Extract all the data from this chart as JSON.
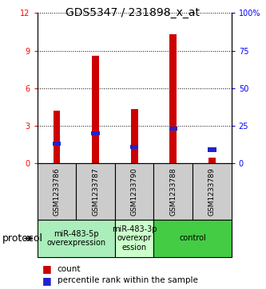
{
  "title": "GDS5347 / 231898_x_at",
  "samples": [
    "GSM1233786",
    "GSM1233787",
    "GSM1233790",
    "GSM1233788",
    "GSM1233789"
  ],
  "counts": [
    4.2,
    8.6,
    4.35,
    10.3,
    0.45
  ],
  "percentiles": [
    13,
    20,
    11,
    23,
    9
  ],
  "left_ylim": [
    0,
    12
  ],
  "right_ylim": [
    0,
    100
  ],
  "left_yticks": [
    0,
    3,
    6,
    9,
    12
  ],
  "right_yticks": [
    0,
    25,
    50,
    75,
    100
  ],
  "right_yticklabels": [
    "0",
    "25",
    "50",
    "75",
    "100%"
  ],
  "bar_color": "#cc0000",
  "pct_color": "#2222cc",
  "groups": [
    {
      "label": "miR-483-5p\noverexpression",
      "sample_indices": [
        0,
        1
      ],
      "color": "#aaeebb"
    },
    {
      "label": "miR-483-3p\noverexpr\nession",
      "sample_indices": [
        2
      ],
      "color": "#ccffcc"
    },
    {
      "label": "control",
      "sample_indices": [
        3,
        4
      ],
      "color": "#44cc44"
    }
  ],
  "protocol_label": "protocol",
  "legend_count_label": "count",
  "legend_pct_label": "percentile rank within the sample",
  "background_color": "#ffffff",
  "bar_width": 0.18,
  "title_fontsize": 10,
  "tick_fontsize": 7,
  "sample_fontsize": 6.5,
  "group_fontsize": 7,
  "legend_fontsize": 7.5
}
